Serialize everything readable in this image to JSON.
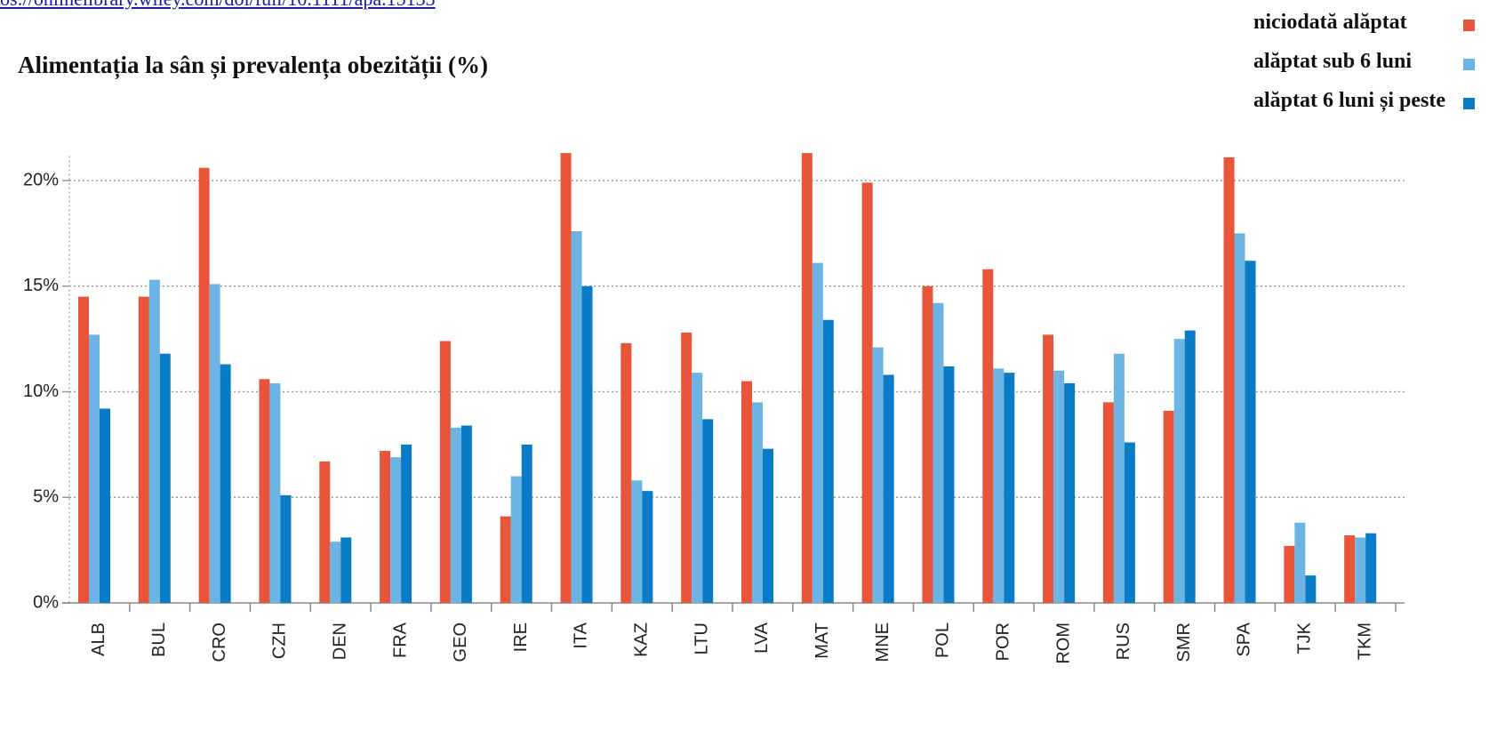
{
  "link": "os://onlinelibrary.wiley.com/doi/full/10.1111/apa.15133",
  "chart_data": {
    "type": "bar",
    "title": "Alimentația la sân și prevalența obezității (%)",
    "categories": [
      "ALB",
      "BUL",
      "CRO",
      "CZH",
      "DEN",
      "FRA",
      "GEO",
      "IRE",
      "ITA",
      "KAZ",
      "LTU",
      "LVA",
      "MAT",
      "MNE",
      "POL",
      "POR",
      "ROM",
      "RUS",
      "SMR",
      "SPA",
      "TJK",
      "TKM"
    ],
    "series": [
      {
        "name": "niciodată alăptat",
        "color": "#e8553a",
        "values": [
          14.5,
          14.5,
          20.6,
          10.6,
          6.7,
          7.2,
          12.4,
          4.1,
          21.3,
          12.3,
          12.8,
          10.5,
          21.3,
          19.9,
          15.0,
          15.8,
          12.7,
          9.5,
          9.1,
          21.1,
          2.7,
          3.2
        ]
      },
      {
        "name": "alăptat sub 6 luni",
        "color": "#6cb4e4",
        "values": [
          12.7,
          15.3,
          15.1,
          10.4,
          2.9,
          6.9,
          8.3,
          6.0,
          17.6,
          5.8,
          10.9,
          9.5,
          16.1,
          12.1,
          14.2,
          11.1,
          11.0,
          11.8,
          12.5,
          17.5,
          3.8,
          3.1
        ]
      },
      {
        "name": "alăptat 6 luni și peste",
        "color": "#0a7cc7",
        "values": [
          9.2,
          11.8,
          11.3,
          5.1,
          3.1,
          7.5,
          8.4,
          7.5,
          15.0,
          5.3,
          8.7,
          7.3,
          13.4,
          10.8,
          11.2,
          10.9,
          10.4,
          7.6,
          12.9,
          16.2,
          1.3,
          3.3
        ]
      }
    ],
    "ylim": [
      0,
      22
    ],
    "yticks": [
      {
        "value": 0,
        "label": "0%"
      },
      {
        "value": 5,
        "label": "5%"
      },
      {
        "value": 10,
        "label": "10%"
      },
      {
        "value": 15,
        "label": "15%"
      },
      {
        "value": 20,
        "label": "20%"
      }
    ],
    "grid": true,
    "legend": "top-right"
  }
}
